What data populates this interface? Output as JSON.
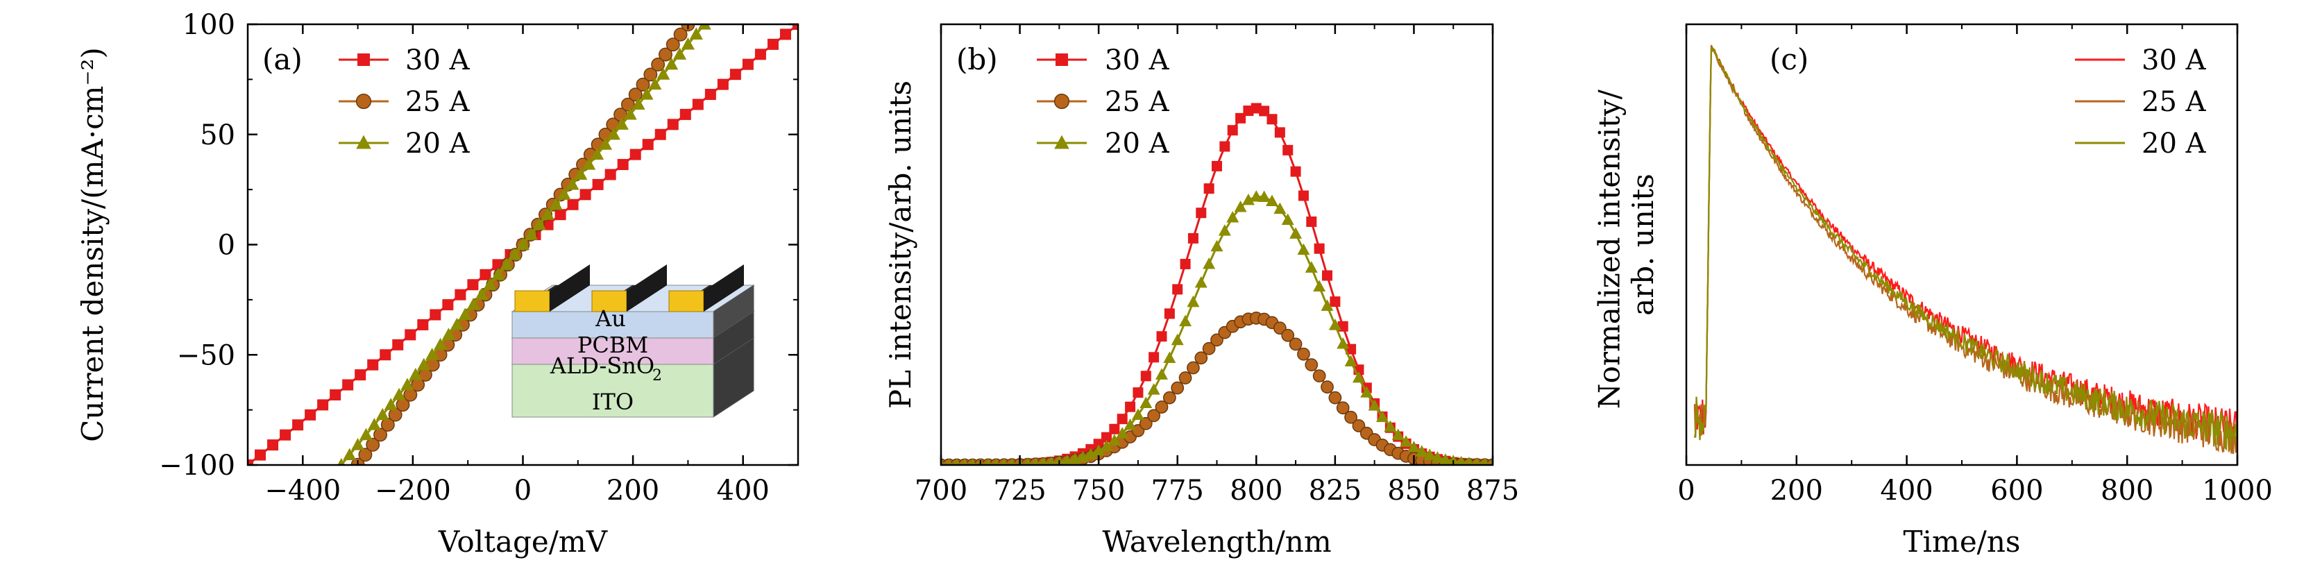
{
  "chart_data": [
    {
      "panel_label": "(a)",
      "type": "line",
      "xlabel": "Voltage/mV",
      "ylabel": "Current density/(mA·cm⁻²)",
      "xlim": [
        -500,
        500
      ],
      "ylim": [
        -100,
        100
      ],
      "xticks": [
        -400,
        -200,
        0,
        200,
        400
      ],
      "xtick_labels": [
        "−400",
        "−200",
        "0",
        "200",
        "400"
      ],
      "yticks": [
        -100,
        -50,
        0,
        50,
        100
      ],
      "ytick_labels": [
        "−100",
        "−50",
        "0",
        "50",
        "100"
      ],
      "legend_position": "top-left",
      "series": [
        {
          "name": "30 A",
          "color": "#e41a1c",
          "marker": "square",
          "slope": 0.2,
          "intercept": 0,
          "x_range": [
            -500,
            500
          ]
        },
        {
          "name": "25 A",
          "color": "#b8651b",
          "marker": "circle",
          "slope": 0.333,
          "intercept": 0,
          "x_range": [
            -300,
            300
          ]
        },
        {
          "name": "20 A",
          "color": "#8c8c00",
          "marker": "triangle",
          "slope": 0.303,
          "intercept": 0,
          "x_range": [
            -330,
            330
          ]
        }
      ],
      "inset": {
        "layers": [
          "Au",
          "PCBM",
          "ALD-SnO",
          "ITO"
        ],
        "subscript": "2"
      }
    },
    {
      "panel_label": "(b)",
      "type": "line",
      "xlabel": "Wavelength/nm",
      "ylabel": "PL intensity/arb. units",
      "xlim": [
        700,
        875
      ],
      "ylim": [
        0,
        1.05
      ],
      "xticks": [
        700,
        725,
        750,
        775,
        800,
        825,
        850,
        875
      ],
      "xtick_labels": [
        "700",
        "725",
        "750",
        "775",
        "800",
        "825",
        "850",
        "875"
      ],
      "legend_position": "top-left",
      "series": [
        {
          "name": "30 A",
          "color": "#e41a1c",
          "marker": "square",
          "peak": 800,
          "amplitude": 0.85,
          "sigma_left": 21,
          "sigma_right": 20
        },
        {
          "name": "25 A",
          "color": "#b8651b",
          "marker": "circle",
          "peak": 800,
          "amplitude": 0.35,
          "sigma_left": 22,
          "sigma_right": 20
        },
        {
          "name": "20 A",
          "color": "#8c8c00",
          "marker": "triangle",
          "peak": 801,
          "amplitude": 0.64,
          "sigma_left": 21,
          "sigma_right": 21
        }
      ]
    },
    {
      "panel_label": "(c)",
      "type": "line",
      "xlabel": "Time/ns",
      "ylabel": "Normalized intensity/\narb. units",
      "ylabel_lines": [
        "Normalized intensity/",
        "arb. units"
      ],
      "xlim": [
        0,
        1000
      ],
      "ylim": [
        0,
        1.02
      ],
      "xticks": [
        0,
        200,
        400,
        600,
        800,
        1000
      ],
      "xtick_labels": [
        "0",
        "200",
        "400",
        "600",
        "800",
        "1000"
      ],
      "legend_position": "top-right",
      "series": [
        {
          "name": "30 A",
          "color": "#ff1a1a",
          "peak_time": 45,
          "tau": 390
        },
        {
          "name": "25 A",
          "color": "#b8651b",
          "peak_time": 45,
          "tau": 360
        },
        {
          "name": "20 A",
          "color": "#8c8c00",
          "peak_time": 45,
          "tau": 375
        }
      ]
    }
  ]
}
